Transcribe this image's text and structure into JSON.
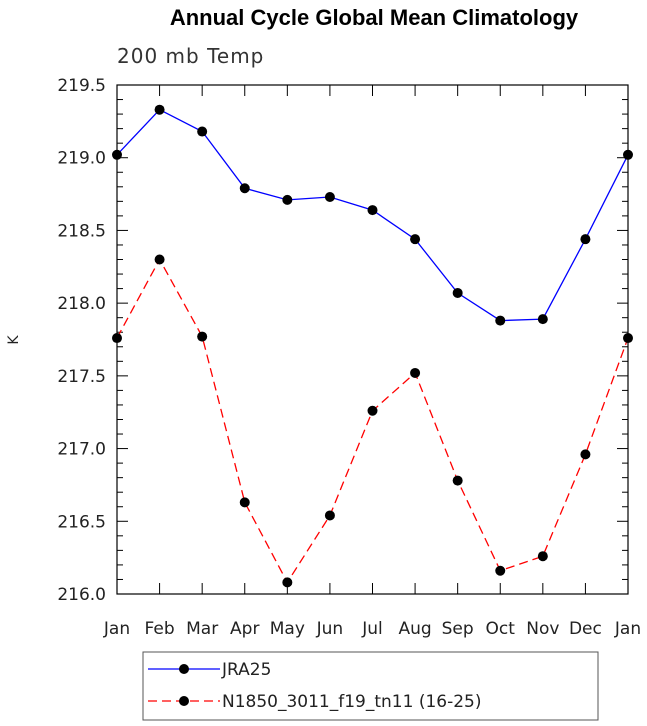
{
  "chart_data": {
    "type": "line",
    "title": "Annual Cycle Global Mean Climatology",
    "subtitle": "200 mb Temp",
    "xlabel": "",
    "ylabel": "K",
    "categories": [
      "Jan",
      "Feb",
      "Mar",
      "Apr",
      "May",
      "Jun",
      "Jul",
      "Aug",
      "Sep",
      "Oct",
      "Nov",
      "Dec",
      "Jan"
    ],
    "ylim": [
      216.0,
      219.5
    ],
    "yticks": [
      "216.0",
      "216.5",
      "217.0",
      "217.5",
      "218.0",
      "218.5",
      "219.0",
      "219.5"
    ],
    "grid": false,
    "legend_position": "bottom",
    "series": [
      {
        "name": "JRA25",
        "color": "#0000ff",
        "line_style": "solid",
        "values": [
          219.02,
          219.33,
          219.18,
          218.79,
          218.71,
          218.73,
          218.64,
          218.44,
          218.07,
          217.88,
          217.89,
          218.44,
          219.02
        ]
      },
      {
        "name": "N1850_3011_f19_tn11 (16-25)",
        "color": "#ff0000",
        "line_style": "dashed",
        "values": [
          217.76,
          218.3,
          217.77,
          216.63,
          216.08,
          216.54,
          217.26,
          217.52,
          216.78,
          216.16,
          216.26,
          216.96,
          217.76
        ]
      }
    ]
  }
}
